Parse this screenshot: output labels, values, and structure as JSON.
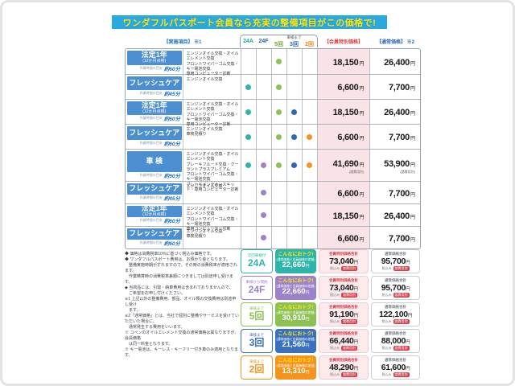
{
  "title": "ワンダフルパスポート会員なら充実の整備項目がこの価格で!",
  "header": {
    "items_label": "【実施項目】 ※1",
    "col_24a": "24A",
    "col_24f": "24F",
    "col_shaken": "車検まで",
    "col_5": "5回",
    "col_3": "3回",
    "col_2": "2回",
    "member_price": "【会員特別価格】",
    "normal_price": "【通常価格】 ※2"
  },
  "labels": {
    "time_label": "作業時間の目安",
    "yen": "円",
    "member_total": "会員特別価格合計",
    "normal_total": "通常価格合計",
    "tax_note": "税込み",
    "fee_badge": "諸費用別"
  },
  "rows": [
    {
      "name": "法定1年",
      "sub": "(12か月点検)",
      "time": "約60分",
      "desc": "エンジンオイル交換・オイルエレメント交換\nフロントワイパーゴム交換・キー電池交換\n専用コンピューター診断",
      "dots": {
        "a24": 0,
        "f24": 0,
        "r5": 1,
        "r3": 0,
        "r2": 0
      },
      "member": "18,150",
      "normal": "26,400",
      "note": ""
    },
    {
      "name": "フレッシュケア",
      "sub": "",
      "time": "約45分",
      "desc": "エンジンオイル交換",
      "dots": {
        "a24": 1,
        "f24": 0,
        "r5": 1,
        "r3": 0,
        "r2": 0
      },
      "member": "6,600",
      "normal": "7,700",
      "note": ""
    },
    {
      "name": "法定1年",
      "sub": "(12か月点検)",
      "time": "約60分",
      "desc": "エンジンオイル交換・オイルエレメント交換\nフロントワイパーゴム交換・キー電池交換\n専用コンピューター診断",
      "dots": {
        "a24": 1,
        "f24": 0,
        "r5": 1,
        "r3": 1,
        "r2": 0
      },
      "member": "18,150",
      "normal": "26,400",
      "note": ""
    },
    {
      "name": "フレッシュケア",
      "sub": "",
      "time": "約60分",
      "desc": "エンジンオイル交換\n車検見積り",
      "dots": {
        "a24": 1,
        "f24": 0,
        "r5": 1,
        "r3": 1,
        "r2": 1
      },
      "member": "6,600",
      "normal": "7,700",
      "note": ""
    },
    {
      "name": "車 検",
      "sub": "",
      "time": "約90分",
      "desc": "エンジンオイル交換・オイルエレメント交換\nブレーキフルード交換・クーラントプラスプレミアム\nフロントワイパーゴム交換・キー電池交換\nブレーキメンテナンスキット・専用コンピューター診断",
      "dots": {
        "a24": 1,
        "f24": 1,
        "r5": 1,
        "r3": 1,
        "r2": 1
      },
      "member": "41,690",
      "normal": "53,900",
      "note": "(諸費用別)"
    },
    {
      "name": "フレッシュケア",
      "sub": "",
      "time": "約45分",
      "desc": "エンジンオイル交換",
      "dots": {
        "a24": 0,
        "f24": 1,
        "r5": 0,
        "r3": 0,
        "r2": 0
      },
      "member": "6,600",
      "normal": "7,700",
      "note": ""
    },
    {
      "name": "法定1年",
      "sub": "(12か月点検)",
      "time": "約60分",
      "desc": "エンジンオイル交換・オイルエレメント交換\nフロントワイパーゴム交換・キー電池交換\n専用コンピューター診断",
      "dots": {
        "a24": 0,
        "f24": 1,
        "r5": 0,
        "r3": 0,
        "r2": 0
      },
      "member": "18,150",
      "normal": "26,400",
      "note": ""
    },
    {
      "name": "フレッシュケア",
      "sub": "",
      "time": "約60分",
      "desc": "エンジンオイル交換\n車検見積り",
      "dots": {
        "a24": 0,
        "f24": 1,
        "r5": 0,
        "r3": 0,
        "r2": 0
      },
      "member": "6,600",
      "normal": "7,700",
      "note": ""
    }
  ],
  "notes": "◆ 価格は消費税率10%に基づく税込み価格です。\n◆ ワンダフルパスポート費用は、お預かり金となります。\n　整備実施時期がずれますので、その時の消費税率が適用されます。\n　作業精算時の消費税率差額につきましては別途申し受けます。\n◆ 当商品には、引取・納車費用は含まれておりませんので、\n　ご希望をお申し付けください。\n※1 上記以外の整備費用、部品、オイル類の交換費用は別途申し受け\n　ます。\n※2「通常価格」とは、当社で個別に整備やサービスを受けていただいた場合に、\n　通常発生する費用をいいます。\n※ コペンのオイルエレメント交換の通常価格は異なりますが、会員価格\n　は同一料金となります。\n※ キー電池は、キーレス・キーフリー付き車のみ適用となります。",
  "summary": [
    {
      "theme": "t-teal",
      "top": "次回車検付",
      "label": "24A",
      "otoku_title": "こんなにおトク!",
      "otoku_sub": "(通常価格と会員価格の差額)",
      "otoku": "22,660",
      "member": "73,040",
      "normal": "95,700"
    },
    {
      "theme": "t-purple",
      "top": "車検から開始",
      "label": "24F",
      "otoku_title": "こんなにおトク!",
      "otoku_sub": "(通常価格と会員価格の差額)",
      "otoku": "22,660",
      "member": "73,040",
      "normal": "95,700"
    },
    {
      "theme": "t-green",
      "top": "車検まで",
      "label": "5回",
      "otoku_title": "こんなにおトク!",
      "otoku_sub": "(通常価格と会員価格の差額)",
      "otoku": "30,910",
      "member": "91,190",
      "normal": "122,100"
    },
    {
      "theme": "t-blue",
      "top": "車検まで",
      "label": "3回",
      "otoku_title": "こんなにおトク!",
      "otoku_sub": "(通常価格と会員価格の差額)",
      "otoku": "21,560",
      "member": "66,440",
      "normal": "88,000"
    },
    {
      "theme": "t-orange",
      "top": "車検まで",
      "label": "2回",
      "otoku_title": "こんなにおトク!",
      "otoku_sub": "(通常価格と会員価格の差額)",
      "otoku": "13,310",
      "member": "48,290",
      "normal": "61,600"
    }
  ]
}
